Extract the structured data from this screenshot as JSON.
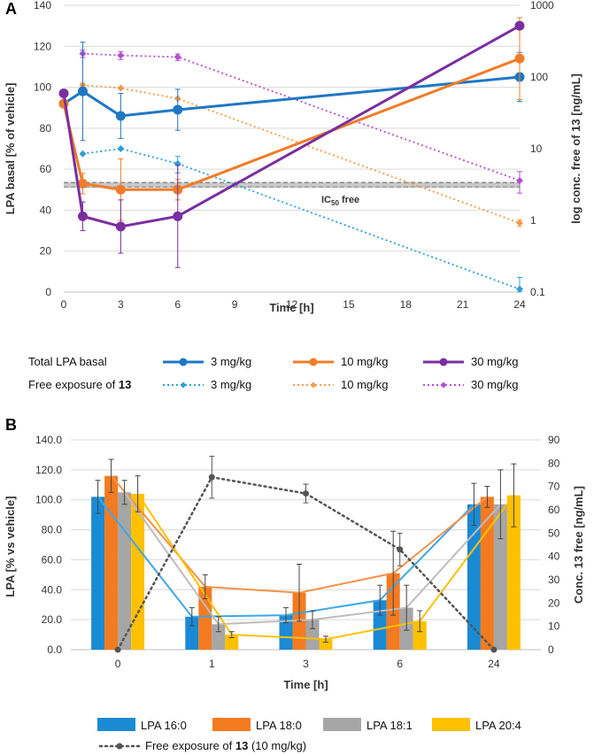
{
  "chart_data": [
    {
      "panel": "A",
      "type": "line",
      "xlabel": "Time [h]",
      "ylabel": "LPA basal [% of vehicle]",
      "y2label": "log conc. free of 13 [ng/mL]",
      "xlim": [
        0,
        24
      ],
      "xticks": [
        0,
        3,
        6,
        9,
        12,
        15,
        18,
        21,
        24
      ],
      "ylim": [
        0,
        140
      ],
      "yticks": [
        0,
        20,
        40,
        60,
        80,
        100,
        120,
        140
      ],
      "y2lim": [
        0.1,
        1000
      ],
      "y2scale": "log",
      "y2ticks": [
        0.1,
        1,
        10,
        100,
        1000
      ],
      "ic50": {
        "label_main": "IC",
        "label_sub": "50",
        "label_tail": " free",
        "value_conc": 3.1
      },
      "series_total": [
        {
          "name": "3 mg/kg",
          "color": "#1f77c4",
          "x": [
            0,
            1,
            3,
            6,
            24
          ],
          "y": [
            92,
            98,
            86,
            89,
            105
          ],
          "err": [
            0,
            24,
            11,
            10,
            12
          ]
        },
        {
          "name": "10 mg/kg",
          "color": "#f07c28",
          "x": [
            0,
            1,
            3,
            6,
            24
          ],
          "y": [
            92,
            53,
            50,
            50,
            114
          ],
          "err": [
            0,
            5,
            15,
            5,
            20
          ]
        },
        {
          "name": "30 mg/kg",
          "color": "#7a2ea0",
          "x": [
            0,
            1,
            3,
            6,
            24
          ],
          "y": [
            97,
            37,
            32,
            37,
            130
          ],
          "err": [
            0,
            7,
            13,
            25,
            0
          ]
        }
      ],
      "series_free": [
        {
          "name": "3 mg/kg",
          "color": "#2d9fd8",
          "x": [
            1,
            3,
            6,
            24
          ],
          "y": [
            8.5,
            10,
            6.2,
            0.11
          ],
          "err": [
            0,
            0,
            1.6,
            0.05
          ]
        },
        {
          "name": "10 mg/kg",
          "color": "#f59a4a",
          "x": [
            1,
            3,
            6,
            24
          ],
          "y": [
            77,
            70,
            50,
            0.92
          ],
          "err": [
            5,
            0,
            0,
            0.1
          ]
        },
        {
          "name": "30 mg/kg",
          "color": "#b24fd0",
          "x": [
            1,
            3,
            6,
            24
          ],
          "y": [
            212,
            200,
            190,
            3.6
          ],
          "err": [
            25,
            25,
            20,
            1.2
          ]
        }
      ],
      "legend": {
        "row1_label": "Total LPA basal",
        "row2_label": "Free exposure of ",
        "row2_bold": "13",
        "entries": [
          "3 mg/kg",
          "10 mg/kg",
          "30 mg/kg"
        ]
      }
    },
    {
      "panel": "B",
      "type": "bar",
      "xlabel": "Time [h]",
      "ylabel": "LPA  [% vs vehicle]",
      "y2label": "Conc. 13 free  [ng/mL]",
      "categories": [
        "0",
        "1",
        "3",
        "6",
        "24"
      ],
      "ylim": [
        0,
        140
      ],
      "yticks": [
        "0.0",
        "20.0",
        "40.0",
        "60.0",
        "80.0",
        "100.0",
        "120.0",
        "140.0"
      ],
      "y2lim": [
        0,
        90
      ],
      "y2ticks": [
        0,
        10,
        20,
        30,
        40,
        50,
        60,
        70,
        80,
        90
      ],
      "series": [
        {
          "name": "LPA 16:0",
          "color": "#1a8ad4",
          "line_color": "#3fa6e8",
          "values": [
            102,
            22,
            23,
            33,
            97
          ],
          "err": [
            11,
            6,
            5,
            10,
            14
          ]
        },
        {
          "name": "LPA 18:0",
          "color": "#f47b20",
          "line_color": "#f5924a",
          "values": [
            116,
            42,
            38,
            51,
            102
          ],
          "err": [
            11,
            8,
            19,
            28,
            7
          ]
        },
        {
          "name": "LPA 18:1",
          "color": "#a6a6a6",
          "line_color": "#bdbdbd",
          "values": [
            105,
            17,
            20,
            28,
            97
          ],
          "err": [
            8,
            5,
            6,
            15,
            23
          ]
        },
        {
          "name": "LPA 20:4",
          "color": "#ffc000",
          "line_color": "#ffc000",
          "values": [
            104,
            10,
            7,
            19,
            103
          ],
          "err": [
            12,
            2,
            2,
            7,
            21
          ]
        }
      ],
      "free_exposure": {
        "name_main": "Free exposure of ",
        "name_bold": "13",
        "name_tail": " (10 mg/kg)",
        "color": "#555555",
        "values": [
          0,
          74,
          67,
          43,
          0
        ],
        "err": [
          0,
          9,
          4,
          7,
          0
        ]
      }
    }
  ]
}
